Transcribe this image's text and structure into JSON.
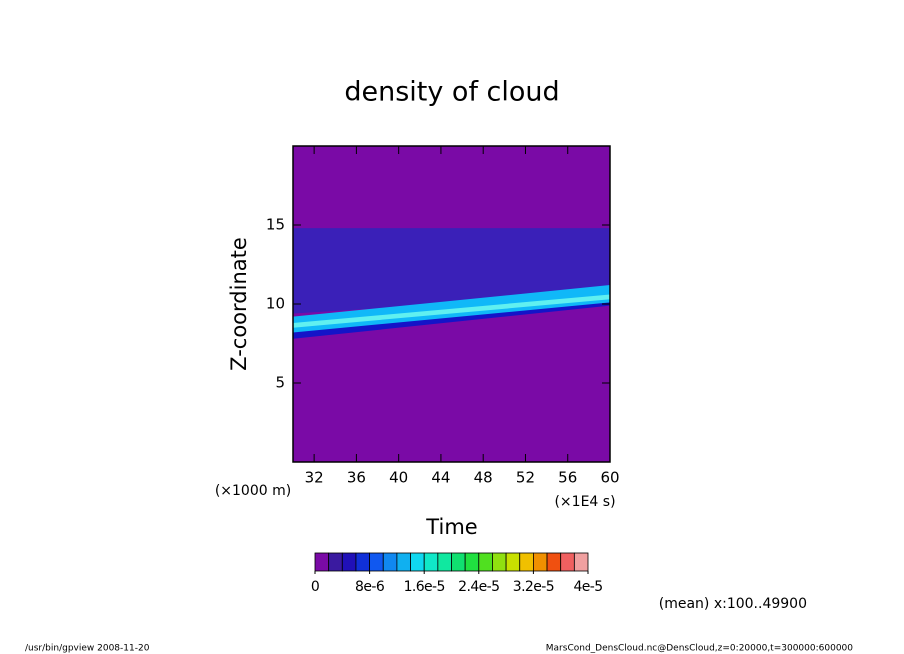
{
  "chart_data": {
    "type": "heatmap",
    "title": "density of cloud",
    "x_label": "Time",
    "x_unit": "(×1E4 s)",
    "y_label": "Z-coordinate",
    "y_unit": "(×1000 m)",
    "xlim": [
      30,
      60
    ],
    "xticks": [
      32,
      36,
      40,
      44,
      48,
      52,
      56,
      60
    ],
    "ylim": [
      0,
      20
    ],
    "yticks": [
      5,
      10,
      15
    ],
    "background": "#7a0aa6",
    "bands": [
      {
        "color": "#3a20b8",
        "x": [
          30,
          60
        ],
        "y_low": [
          9.4,
          10.6
        ],
        "y_high": [
          14.8,
          14.8
        ]
      },
      {
        "color": "#1414c8",
        "x": [
          30,
          60
        ],
        "y_low": [
          7.8,
          9.9
        ],
        "y_high": [
          8.3,
          10.3
        ]
      },
      {
        "color": "#10b8f8",
        "x": [
          30,
          60
        ],
        "y_low": [
          8.2,
          10.1
        ],
        "y_high": [
          9.2,
          11.2
        ]
      },
      {
        "color": "#60f0f0",
        "x": [
          30,
          60
        ],
        "y_low": [
          8.5,
          10.3
        ],
        "y_high": [
          8.8,
          10.6
        ]
      }
    ],
    "colorbar": {
      "clim": [
        0,
        4e-05
      ],
      "colors": [
        "#7a0aa6",
        "#3a1aa0",
        "#2010b8",
        "#1030d8",
        "#1058f0",
        "#1088f0",
        "#10b0f0",
        "#10d8f0",
        "#10e8c8",
        "#10e8a0",
        "#10e070",
        "#20e040",
        "#50e020",
        "#90e010",
        "#c8e000",
        "#f0c000",
        "#f09000",
        "#f05010",
        "#f06060",
        "#f0a0a0"
      ],
      "ticks": [
        {
          "value": 0,
          "label": "0"
        },
        {
          "value": 8e-06,
          "label": "8e-6"
        },
        {
          "value": 1.6e-05,
          "label": "1.6e-5"
        },
        {
          "value": 2.4e-05,
          "label": "2.4e-5"
        },
        {
          "value": 3.2e-05,
          "label": "3.2e-5"
        },
        {
          "value": 4e-05,
          "label": "4e-5"
        }
      ]
    },
    "mean_note": "(mean) x:100..49900",
    "footer_left": "/usr/bin/gpview  2008-11-20",
    "footer_right": "MarsCond_DensCloud.nc@DensCloud,z=0:20000,t=300000:600000"
  }
}
